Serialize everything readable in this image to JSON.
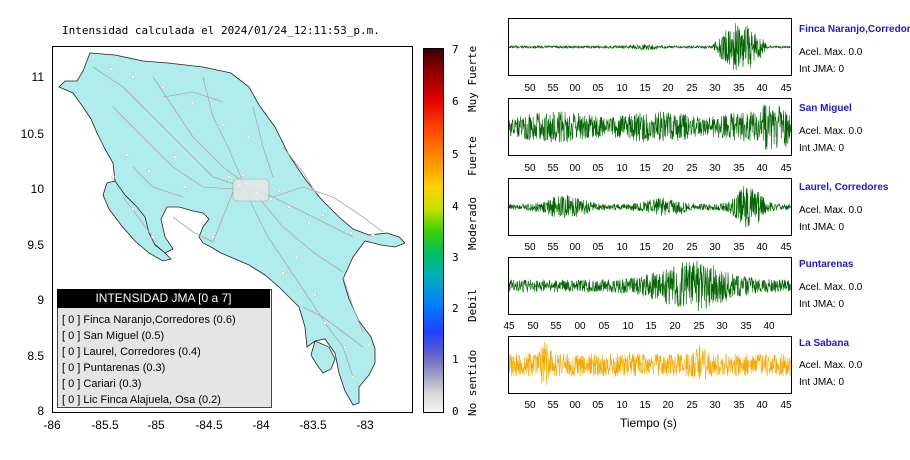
{
  "map": {
    "title": "Intensidad calculada el 2024/01/24_12:11:53_p.m.",
    "y_ticks": [
      "11",
      "10.5",
      "10",
      "9.5",
      "9",
      "8.5",
      "8"
    ],
    "x_ticks": [
      "-86",
      "-85.5",
      "-85",
      "-84.5",
      "-84",
      "-83.5",
      "-83"
    ],
    "land_color": "#b0ecec",
    "road_color": "#a8a8a8"
  },
  "legend": {
    "header": "INTENSIDAD JMA [0 a 7]",
    "items": [
      "[ 0 ]  Finca Naranjo,Corredores (0.6)",
      "[ 0 ]  San Miguel (0.5)",
      "[ 0 ]  Laurel, Corredores (0.4)",
      "[ 0 ]  Puntarenas (0.3)",
      "[ 0 ]  Cariari (0.3)",
      "[ 0 ]  Lic Finca Alajuela, Osa (0.2)"
    ]
  },
  "colorbar": {
    "ticks": [
      "7",
      "6",
      "5",
      "4",
      "3",
      "2",
      "1",
      "0"
    ],
    "labels": [
      "Muy Fuerte",
      "Fuerte",
      "Moderado",
      "Debil",
      "No sentido"
    ]
  },
  "stations": [
    {
      "name": "Finca Naranjo,Corredor",
      "acel": "Acel. Max. 0.0",
      "int": "Int JMA: 0",
      "color": "#006400",
      "ticks": [
        "50",
        "55",
        "00",
        "05",
        "10",
        "15",
        "20",
        "25",
        "30",
        "35",
        "40",
        "45"
      ]
    },
    {
      "name": "San Miguel",
      "acel": "Acel. Max. 0.0",
      "int": "Int JMA: 0",
      "color": "#006400",
      "ticks": [
        "50",
        "55",
        "00",
        "05",
        "10",
        "15",
        "20",
        "25",
        "30",
        "35",
        "40",
        "45"
      ]
    },
    {
      "name": "Laurel, Corredores",
      "acel": "Acel. Max. 0.0",
      "int": "Int JMA: 0",
      "color": "#006400",
      "ticks": [
        "50",
        "55",
        "00",
        "05",
        "10",
        "15",
        "20",
        "25",
        "30",
        "35",
        "40",
        "45"
      ]
    },
    {
      "name": "Puntarenas",
      "acel": "Acel. Max. 0.0",
      "int": "Int JMA: 0",
      "color": "#006400",
      "ticks": [
        "45",
        "50",
        "55",
        "00",
        "05",
        "10",
        "15",
        "20",
        "25",
        "30",
        "35",
        "40"
      ]
    },
    {
      "name": "La Sabana",
      "acel": "Acel. Max. 0.0",
      "int": "Int JMA: 0",
      "color": "#f5a800",
      "ticks": [
        "50",
        "55",
        "00",
        "05",
        "10",
        "15",
        "20",
        "25",
        "30",
        "35",
        "40",
        "45"
      ]
    }
  ],
  "traces_axis_title": "Tiempo (s)"
}
